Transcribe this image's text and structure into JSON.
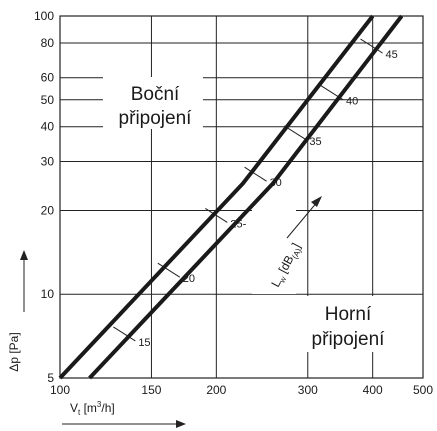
{
  "chart_data": {
    "type": "line",
    "xscale": "log",
    "yscale": "log",
    "xlim": [
      100,
      500
    ],
    "ylim": [
      5,
      100
    ],
    "x_ticks": [
      100,
      150,
      200,
      300,
      400,
      500
    ],
    "x_tick_labels": [
      "100",
      "150",
      "200",
      "300",
      "400",
      "500"
    ],
    "y_ticks": [
      5,
      10,
      20,
      30,
      40,
      50,
      60,
      80,
      100
    ],
    "y_tick_labels": [
      "5",
      "10",
      "20",
      "30",
      "40",
      "50",
      "60",
      "80",
      "100"
    ],
    "grid": true,
    "xlabel": {
      "main": "V",
      "sub": "t",
      "rest": " [m",
      "sup": "3",
      "tail": "/h]"
    },
    "ylabel": "Δp [Pa]",
    "noise_label": {
      "main": "L",
      "sub": "w",
      "mid": " [dB",
      "sub2": "(A)",
      "tail": "]"
    },
    "series": [
      {
        "name": "Boční připojení",
        "label_lines": [
          "Boční",
          "připojení"
        ],
        "x": [
          100,
          225,
          400
        ],
        "y": [
          5,
          25,
          100
        ]
      },
      {
        "name": "Horní připojení",
        "label_lines": [
          "Horní",
          "připojení"
        ],
        "x": [
          114,
          257,
          455
        ],
        "y": [
          5,
          25,
          100
        ]
      }
    ],
    "noise_marks": [
      {
        "label": "15",
        "x": 133,
        "y": 7.2
      },
      {
        "label": "20",
        "x": 162,
        "y": 12.2
      },
      {
        "label": "25-",
        "x": 200,
        "y": 19.2
      },
      {
        "label": "30",
        "x": 238,
        "y": 27
      },
      {
        "label": "35",
        "x": 284,
        "y": 38
      },
      {
        "label": "40",
        "x": 334,
        "y": 53
      },
      {
        "label": "45",
        "x": 398,
        "y": 78
      }
    ]
  }
}
